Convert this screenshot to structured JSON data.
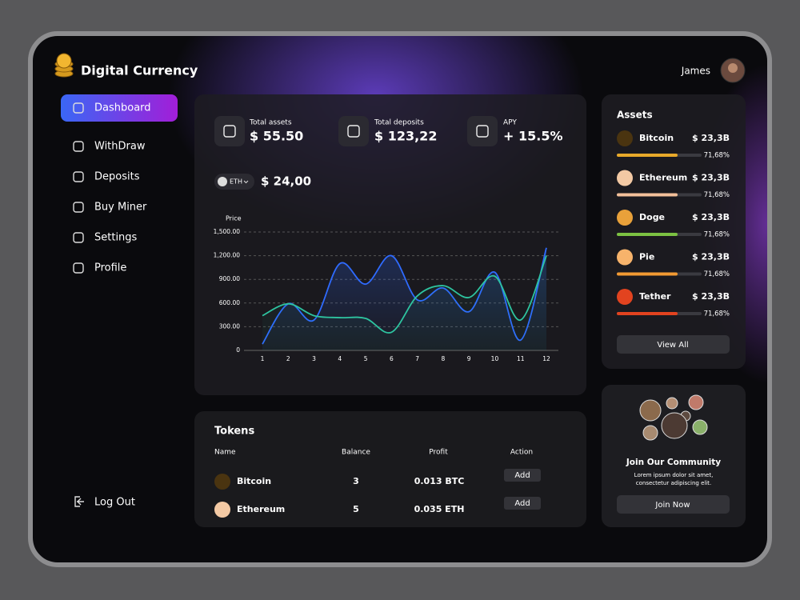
{
  "brand": "Digital Currency",
  "user": "James",
  "nav": [
    "Dashboard",
    "WithDraw",
    "Deposits",
    "Buy Miner",
    "Settings",
    "Profile"
  ],
  "logout": "Log Out",
  "stats": [
    {
      "label": "Total assets",
      "value": "$ 55.50"
    },
    {
      "label": "Total deposits",
      "value": "$ 123,22"
    },
    {
      "label": "APY",
      "value": "+ 15.5%"
    }
  ],
  "coin": {
    "symbol": "ETH",
    "price": "$ 24,00"
  },
  "chart_data": {
    "type": "line",
    "y_label": "Price",
    "x": [
      1,
      2,
      3,
      4,
      5,
      6,
      7,
      8,
      9,
      10,
      11,
      12
    ],
    "xlim": [
      1,
      12
    ],
    "xticks": [
      1,
      2,
      3,
      4,
      5,
      6,
      7,
      8,
      9,
      10,
      11,
      12
    ],
    "ylim": [
      0,
      1500
    ],
    "yticks": [
      0,
      {
        "value": 300,
        "label": "300.00"
      },
      {
        "value": 600,
        "label": "600.00"
      },
      {
        "value": 900,
        "label": "900.00"
      },
      {
        "value": 1200,
        "label": "1,200.00"
      },
      {
        "value": 1500,
        "label": "1,500.00"
      }
    ],
    "grid": true,
    "series": [
      {
        "color": "#2f6bff",
        "values": [
          80,
          590,
          385,
          1100,
          840,
          1200,
          640,
          790,
          490,
          990,
          130,
          1300
        ]
      },
      {
        "color": "#2ec4a0",
        "values": [
          440,
          590,
          440,
          415,
          405,
          230,
          690,
          820,
          670,
          940,
          385,
          1200
        ]
      }
    ]
  },
  "tokens": {
    "title": "Tokens",
    "columns": [
      "Name",
      "Balance",
      "Profit",
      "Action"
    ],
    "rows": [
      [
        "Bitcoin",
        "3",
        "0.013 BTC",
        "Add"
      ],
      [
        "Ethereum",
        "5",
        "0.035 ETH",
        "Add"
      ]
    ]
  },
  "assets": {
    "title": "Assets",
    "items": [
      {
        "name": "Bitcoin",
        "value": "$ 23,3B",
        "percent": "71,68%",
        "progress": 71.68,
        "color": "#e8a92a"
      },
      {
        "name": "Ethereum",
        "value": "$ 23,3B",
        "percent": "71,68%",
        "progress": 71.68,
        "color": "#f3c09a"
      },
      {
        "name": "Doge",
        "value": "$ 23,3B",
        "percent": "71,68%",
        "progress": 71.68,
        "color": "#7cc142"
      },
      {
        "name": "Pie",
        "value": "$ 23,3B",
        "percent": "71,68%",
        "progress": 71.68,
        "color": "#f39a33"
      },
      {
        "name": "Tether",
        "value": "$ 23,3B",
        "percent": "71,68%",
        "progress": 71.68,
        "color": "#e2431f"
      }
    ],
    "button": "View All"
  },
  "community": {
    "title": "Join Our Community",
    "text": [
      "Lorem ipsum dolor sit amet,",
      "consectetur adipiscing elit."
    ],
    "button": "Join Now"
  }
}
